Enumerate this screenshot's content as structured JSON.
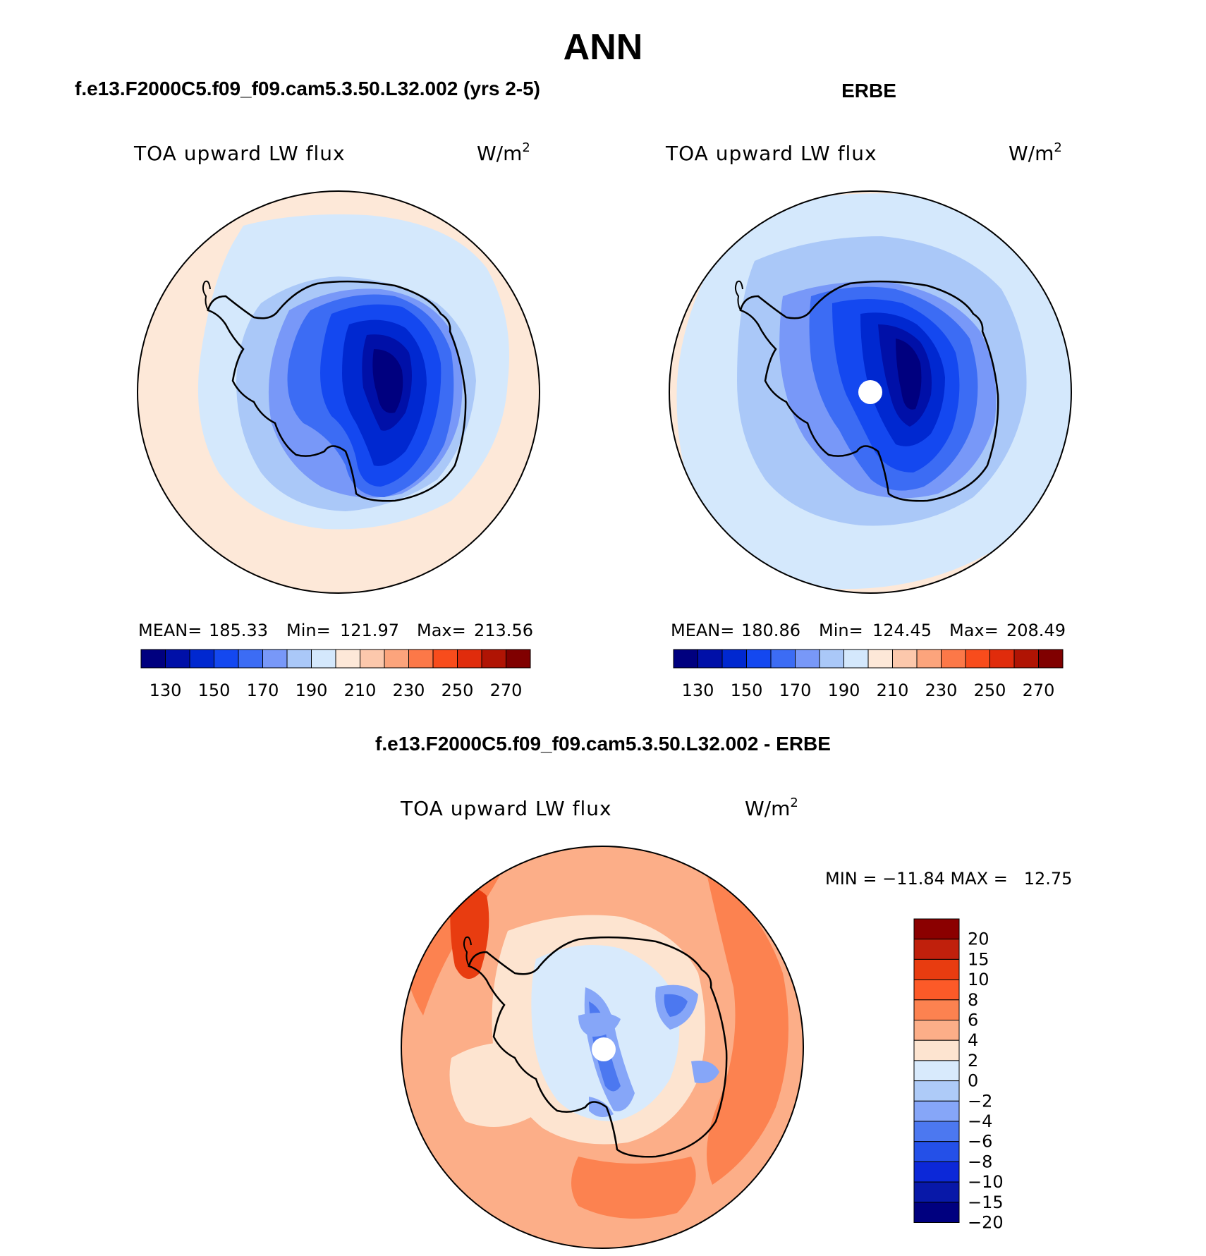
{
  "figure": {
    "title": "ANN",
    "panel1_title": "f.e13.F2000C5.f09_f09.cam5.3.50.L32.002 (yrs 2-5)",
    "panel2_title": "ERBE",
    "diff_title": "f.e13.F2000C5.f09_f09.cam5.3.50.L32.002 - ERBE"
  },
  "panels": [
    {
      "variable": "TOA upward LW flux",
      "units_base": "W/m",
      "units_exp": "2",
      "mean_label": "MEAN=",
      "mean": "185.33",
      "min_label": "Min=",
      "min": "121.97",
      "max_label": "Max=",
      "max": "213.56"
    },
    {
      "variable": "TOA upward LW flux",
      "units_base": "W/m",
      "units_exp": "2",
      "mean_label": "MEAN=",
      "mean": "180.86",
      "min_label": "Min=",
      "min": "124.45",
      "max_label": "Max=",
      "max": "208.49"
    }
  ],
  "diff_panel": {
    "variable": "TOA upward LW flux",
    "units_base": "W/m",
    "units_exp": "2",
    "minmax": "MIN = −11.84 MAX =   12.75"
  },
  "colorbar_top": {
    "colors": [
      "#00007f",
      "#0010a8",
      "#0028d0",
      "#1448f0",
      "#3c6cf4",
      "#7898f8",
      "#aac8f8",
      "#d4e8fc",
      "#fde8d8",
      "#fcc8ac",
      "#fca47c",
      "#fc7848",
      "#f84c1c",
      "#e02c0c",
      "#b01404",
      "#800000"
    ],
    "labels": [
      "130",
      "150",
      "170",
      "190",
      "210",
      "230",
      "250",
      "270"
    ]
  },
  "colorbar_diff": {
    "colors": [
      "#8b0000",
      "#c0200c",
      "#e83c10",
      "#fc5a28",
      "#fc8250",
      "#fcae88",
      "#fde4d0",
      "#d8eafc",
      "#aecbf8",
      "#86a6f8",
      "#4c78f0",
      "#2450e8",
      "#0c28d8",
      "#0818a8",
      "#00007f"
    ],
    "labels": [
      "20",
      "15",
      "10",
      "8",
      "6",
      "4",
      "2",
      "0",
      "−2",
      "−4",
      "−6",
      "−8",
      "−10",
      "−15",
      "−20"
    ]
  },
  "chart_data": [
    {
      "type": "map",
      "title": "f.e13.F2000C5.f09_f09.cam5.3.50.L32.002 (yrs 2-5)",
      "variable": "TOA upward LW flux",
      "units": "W/m2",
      "projection": "south polar stereographic",
      "mean": 185.33,
      "min": 121.97,
      "max": 213.56,
      "contour_levels": [
        130,
        140,
        150,
        160,
        170,
        180,
        190,
        200,
        210,
        220,
        230,
        240,
        250,
        260,
        270
      ]
    },
    {
      "type": "map",
      "title": "ERBE",
      "variable": "TOA upward LW flux",
      "units": "W/m2",
      "projection": "south polar stereographic",
      "mean": 180.86,
      "min": 124.45,
      "max": 208.49,
      "contour_levels": [
        130,
        140,
        150,
        160,
        170,
        180,
        190,
        200,
        210,
        220,
        230,
        240,
        250,
        260,
        270
      ]
    },
    {
      "type": "map",
      "title": "f.e13.F2000C5.f09_f09.cam5.3.50.L32.002 - ERBE",
      "variable": "TOA upward LW flux",
      "units": "W/m2",
      "projection": "south polar stereographic",
      "min": -11.84,
      "max": 12.75,
      "contour_levels": [
        -20,
        -15,
        -10,
        -8,
        -6,
        -4,
        -2,
        0,
        2,
        4,
        6,
        8,
        10,
        15,
        20
      ]
    }
  ]
}
